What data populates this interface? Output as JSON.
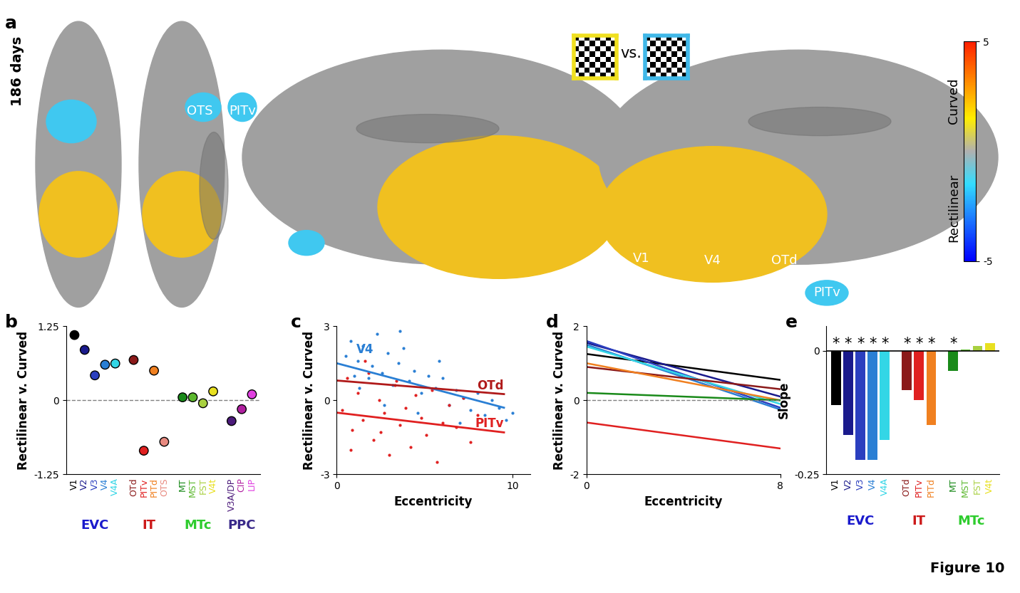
{
  "figure_label": "Figure 10",
  "panel_labels": [
    "a",
    "b",
    "c",
    "d",
    "e"
  ],
  "panel_a": {
    "row_label": "186 days",
    "comparison": "vs.",
    "region_labels": [
      "OTS",
      "PITv",
      "V1",
      "V4",
      "OTd",
      "PITv"
    ],
    "colorbar": {
      "range": [
        -5,
        5
      ],
      "ticks": [
        -5,
        5
      ],
      "upper_label": "Curved",
      "lower_label": "Rectilinear"
    }
  },
  "chart_data": [
    {
      "type": "scatter",
      "ylabel": "Rectilinear v. Curved",
      "categories": [
        "V1",
        "V2",
        "V3",
        "V4",
        "V4A",
        "OTd",
        "PITv",
        "PITd",
        "OTS",
        "MT",
        "MST",
        "FST",
        "V4t",
        "V3A/DP",
        "CIP",
        "LIP"
      ],
      "category_groups": [
        "EVC",
        "EVC",
        "EVC",
        "EVC",
        "EVC",
        "IT",
        "IT",
        "IT",
        "IT",
        "MTc",
        "MTc",
        "MTc",
        "MTc",
        "PPC",
        "PPC",
        "PPC"
      ],
      "values": [
        1.1,
        0.85,
        0.42,
        0.6,
        0.62,
        0.68,
        -0.85,
        0.5,
        -0.7,
        0.05,
        0.05,
        -0.05,
        0.15,
        -0.35,
        -0.15,
        0.1
      ],
      "colors": [
        "#000000",
        "#1a1a8c",
        "#2b3fbf",
        "#2a7fd4",
        "#33d6e6",
        "#8b1a1a",
        "#e02020",
        "#f08020",
        "#e88a80",
        "#1a8a1a",
        "#5cb82e",
        "#a8d040",
        "#e8e020",
        "#4b1a7a",
        "#b020a0",
        "#e040e0"
      ],
      "group_colors": {
        "EVC": "#1a1acc",
        "IT": "#cc1a1a",
        "MTc": "#2ecc2e",
        "PPC": "#3a2a8a"
      },
      "ylim": [
        -1.25,
        1.25
      ],
      "yticks": [
        -1.25,
        0,
        1.25
      ]
    },
    {
      "type": "scatter",
      "xlabel": "Eccentricity",
      "ylabel": "Rectilinear v. Curved",
      "points": [
        {
          "color": "#2a7fd4",
          "x": [
            0.5,
            0.8,
            1.0,
            1.2,
            1.5,
            1.8,
            2.0,
            2.3,
            2.6,
            2.9,
            3.2,
            3.5,
            3.8,
            4.1,
            4.4,
            4.8,
            5.2,
            5.6,
            6.0,
            6.4,
            6.8,
            7.2,
            7.6,
            8.0,
            8.4,
            8.8,
            9.2,
            9.6,
            10.0,
            1.3,
            2.7,
            3.6,
            4.6,
            5.8,
            7.0
          ],
          "y": [
            1.8,
            2.4,
            1.0,
            1.6,
            2.2,
            0.9,
            1.4,
            2.7,
            1.1,
            1.9,
            0.6,
            1.5,
            2.1,
            0.8,
            1.2,
            0.3,
            1.0,
            0.5,
            0.9,
            -0.2,
            0.4,
            0.1,
            -0.4,
            0.3,
            -0.6,
            0.0,
            -0.3,
            -0.8,
            -0.5,
            0.5,
            -0.2,
            2.8,
            -0.5,
            1.6,
            -0.9
          ]
        },
        {
          "color": "#e02020",
          "x": [
            0.3,
            0.6,
            0.9,
            1.2,
            1.5,
            1.8,
            2.1,
            2.4,
            2.7,
            3.0,
            3.3,
            3.6,
            3.9,
            4.2,
            4.5,
            4.8,
            5.1,
            5.4,
            5.7,
            6.0,
            6.4,
            6.8,
            7.2,
            7.6,
            8.0,
            0.8,
            1.6,
            2.5,
            3.4
          ],
          "y": [
            -0.4,
            0.9,
            -1.2,
            0.3,
            -0.8,
            1.1,
            -1.6,
            0.0,
            -0.5,
            -2.2,
            0.6,
            -1.0,
            -0.3,
            -1.9,
            0.2,
            -0.7,
            -1.4,
            0.4,
            -2.5,
            -0.9,
            -0.2,
            -1.1,
            0.1,
            -1.7,
            -0.6,
            -2.0,
            1.6,
            -1.3,
            0.8
          ]
        }
      ],
      "lines": [
        {
          "name": "V4",
          "color": "#2a7fd4",
          "x": [
            0,
            9.5
          ],
          "y": [
            1.5,
            -0.3
          ]
        },
        {
          "name": "OTd",
          "color": "#b01a1a",
          "x": [
            0,
            9.5
          ],
          "y": [
            0.8,
            0.25
          ]
        },
        {
          "name": "PITv",
          "color": "#e02020",
          "x": [
            0,
            9.5
          ],
          "y": [
            -0.5,
            -1.3
          ]
        }
      ],
      "xlim": [
        0,
        11
      ],
      "xticks": [
        0,
        10
      ],
      "ylim": [
        -3,
        3
      ],
      "yticks": [
        -3,
        0,
        3
      ]
    },
    {
      "type": "line",
      "xlabel": "Eccentricity",
      "ylabel": "Rectilinear v. Curved",
      "series": [
        {
          "color": "#000000",
          "x": [
            0,
            8
          ],
          "values": [
            1.25,
            0.55
          ]
        },
        {
          "color": "#1a1a8c",
          "x": [
            0,
            8
          ],
          "values": [
            1.55,
            0.1
          ]
        },
        {
          "color": "#2b3fbf",
          "x": [
            0,
            8
          ],
          "values": [
            1.6,
            -0.2
          ]
        },
        {
          "color": "#2a7fd4",
          "x": [
            0,
            8
          ],
          "values": [
            1.5,
            -0.25
          ]
        },
        {
          "color": "#33d6e6",
          "x": [
            0,
            8
          ],
          "values": [
            1.45,
            -0.1
          ]
        },
        {
          "color": "#8b1a1a",
          "x": [
            0,
            8
          ],
          "values": [
            0.9,
            0.3
          ]
        },
        {
          "color": "#e02020",
          "x": [
            0,
            8
          ],
          "values": [
            -0.6,
            -1.3
          ]
        },
        {
          "color": "#f08020",
          "x": [
            0,
            8
          ],
          "values": [
            1.0,
            0.0
          ]
        },
        {
          "color": "#1a8a1a",
          "x": [
            0,
            8
          ],
          "values": [
            0.2,
            0.0
          ]
        }
      ],
      "xlim": [
        0,
        8
      ],
      "xticks": [
        0,
        8
      ],
      "ylim": [
        -2,
        2
      ],
      "yticks": [
        -2,
        0,
        2
      ]
    },
    {
      "type": "bar",
      "ylabel": "Slope",
      "categories": [
        "V1",
        "V2",
        "V3",
        "V4",
        "V4A",
        "OTd",
        "PITv",
        "PITd",
        "MT",
        "MST",
        "FST",
        "V4t"
      ],
      "category_groups": [
        "EVC",
        "EVC",
        "EVC",
        "EVC",
        "EVC",
        "IT",
        "IT",
        "IT",
        "MTc",
        "MTc",
        "MTc",
        "MTc"
      ],
      "values": [
        -0.11,
        -0.17,
        -0.22,
        -0.22,
        -0.18,
        -0.08,
        -0.1,
        -0.15,
        -0.04,
        0.002,
        0.01,
        0.015
      ],
      "colors": [
        "#000000",
        "#1a1a8c",
        "#2b3fbf",
        "#2a7fd4",
        "#33d6e6",
        "#8b1a1a",
        "#e02020",
        "#f08020",
        "#1a8a1a",
        "#5cb82e",
        "#a8d040",
        "#e8e020"
      ],
      "annotations": [
        "*",
        "*",
        "*",
        "*",
        "*",
        "*",
        "*",
        "*",
        "*",
        null,
        null,
        null
      ],
      "group_colors": {
        "EVC": "#1a1acc",
        "IT": "#cc1a1a",
        "MTc": "#2ecc2e"
      },
      "ylim": [
        -0.25,
        0.05
      ],
      "yticks": [
        -0.25,
        0
      ]
    }
  ]
}
